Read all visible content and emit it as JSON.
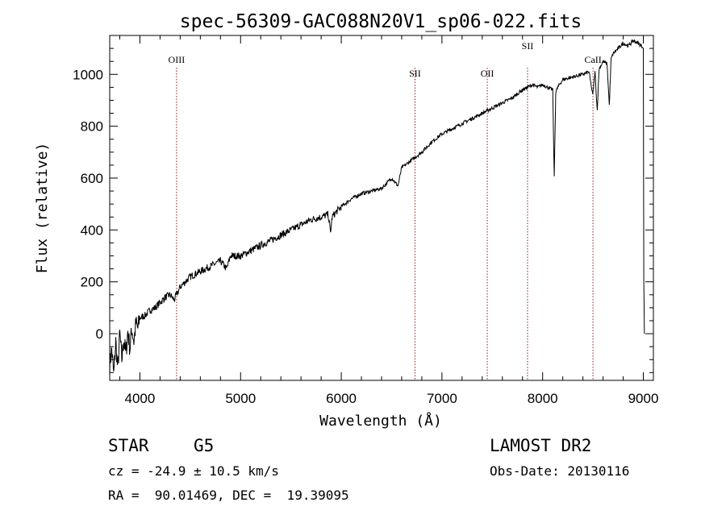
{
  "chart_data": {
    "type": "line",
    "title": "spec-56309-GAC088N20V1_sp06-022.fits",
    "xlabel": "Wavelength (Å)",
    "ylabel": "Flux (relative)",
    "xlim": [
      3700,
      9100
    ],
    "ylim": [
      -180,
      1150
    ],
    "xticks": [
      4000,
      5000,
      6000,
      7000,
      8000,
      9000
    ],
    "yticks": [
      0,
      200,
      400,
      600,
      800,
      1000
    ],
    "series": [
      {
        "x": [
          3700,
          3720,
          3740,
          3760,
          3780,
          3800,
          3820,
          3840,
          3860,
          3880,
          3900,
          3920,
          3940,
          3960,
          3980,
          4000,
          4050,
          4100,
          4150,
          4200,
          4250,
          4300,
          4340,
          4400,
          4450,
          4500,
          4600,
          4700,
          4800,
          4861,
          4900,
          5000,
          5100,
          5200,
          5300,
          5400,
          5500,
          5600,
          5700,
          5800,
          5870,
          5893,
          5910,
          5950,
          6000,
          6100,
          6200,
          6300,
          6400,
          6500,
          6563,
          6600,
          6700,
          6800,
          6900,
          7000,
          7100,
          7200,
          7300,
          7400,
          7500,
          7600,
          7700,
          7800,
          7850,
          7900,
          7950,
          8000,
          8050,
          8100,
          8115,
          8130,
          8150,
          8200,
          8300,
          8400,
          8460,
          8498,
          8520,
          8542,
          8560,
          8600,
          8640,
          8662,
          8680,
          8700,
          8750,
          8800,
          8850,
          8900,
          8950,
          8980,
          9000,
          9005,
          9010
        ],
        "y": [
          -120,
          -60,
          -160,
          -30,
          -140,
          0,
          -100,
          -20,
          -80,
          10,
          -60,
          20,
          -30,
          40,
          20,
          60,
          70,
          90,
          100,
          120,
          140,
          150,
          130,
          180,
          200,
          220,
          240,
          260,
          280,
          250,
          300,
          300,
          320,
          340,
          360,
          380,
          400,
          420,
          440,
          450,
          460,
          390,
          450,
          470,
          490,
          520,
          540,
          550,
          560,
          600,
          570,
          640,
          670,
          700,
          740,
          770,
          790,
          810,
          830,
          850,
          870,
          890,
          910,
          940,
          950,
          960,
          950,
          960,
          950,
          940,
          600,
          930,
          950,
          980,
          990,
          1000,
          1010,
          920,
          1010,
          860,
          1020,
          1050,
          1040,
          880,
          1060,
          1080,
          1100,
          1120,
          1110,
          1130,
          1120,
          1110,
          1100,
          200,
          0
        ]
      }
    ],
    "line_markers": [
      {
        "label": "OIII",
        "x": 4364
      },
      {
        "label": "SII",
        "x": 6732
      },
      {
        "label": "OII",
        "x": 7450
      },
      {
        "label": "SII",
        "x": 7850
      },
      {
        "label": "CaII",
        "x": 8500
      }
    ],
    "grid": false
  },
  "info": {
    "object_class": "STAR",
    "subclass": "G5",
    "survey": "LAMOST DR2",
    "cz": "cz = -24.9 ± 10.5 km/s",
    "obs_date": "Obs-Date: 20130116",
    "coords": "RA =  90.01469, DEC =  19.39095"
  },
  "colors": {
    "spectrum": "#000000",
    "marker": "#8b1a1a",
    "axes": "#000000"
  }
}
